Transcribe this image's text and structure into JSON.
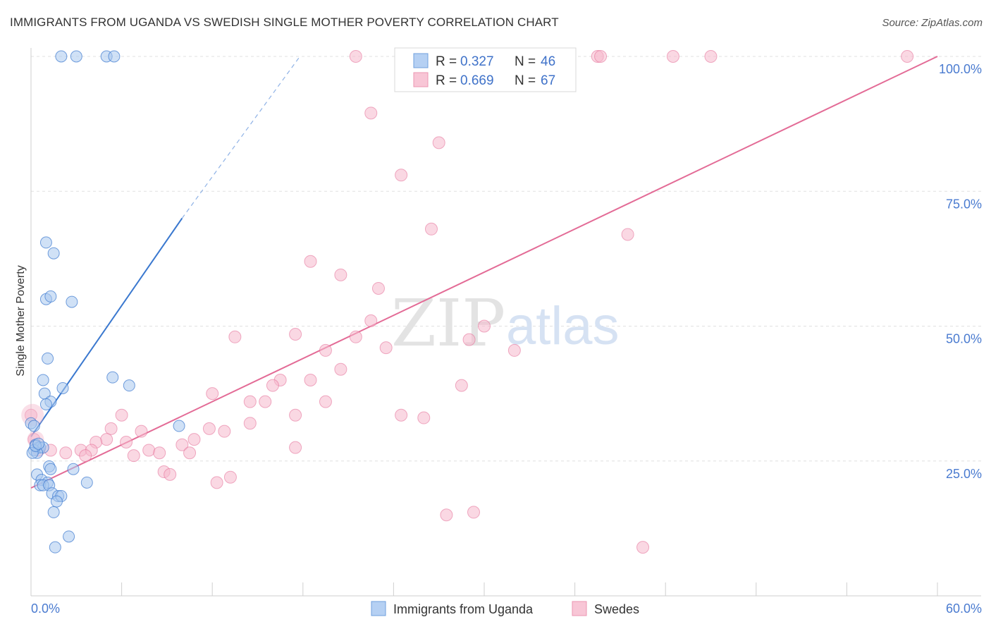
{
  "title": "IMMIGRANTS FROM UGANDA VS SWEDISH SINGLE MOTHER POVERTY CORRELATION CHART",
  "source": "Source: ZipAtlas.com",
  "watermark": {
    "zip": "ZIP",
    "atlas": "atlas"
  },
  "colors": {
    "blue": "#3a78cf",
    "blue_fill": "#a9c8ef",
    "pink": "#e36b96",
    "pink_fill": "#f5b8cc",
    "grid": "#e0e0e0"
  },
  "legend": {
    "rows": [
      {
        "r_label": "R = ",
        "r_value": "0.327",
        "n_label": "N = ",
        "n_value": "46"
      },
      {
        "r_label": "R = ",
        "r_value": "0.669",
        "n_label": "N = ",
        "n_value": "67"
      }
    ]
  },
  "chart_data": {
    "type": "scatter",
    "title": "IMMIGRANTS FROM UGANDA VS SWEDISH SINGLE MOTHER POVERTY CORRELATION CHART",
    "xlabel": "",
    "ylabel": "Single Mother Poverty",
    "xlim": [
      0,
      60
    ],
    "ylim": [
      0,
      100
    ],
    "x_ticks": [
      "0.0%",
      "60.0%"
    ],
    "y_ticks": [
      "25.0%",
      "50.0%",
      "75.0%",
      "100.0%"
    ],
    "grid": true,
    "legend_position": "top-center",
    "series": [
      {
        "name": "Immigrants from Uganda",
        "color": "#3a78cf",
        "R": 0.327,
        "N": 46,
        "trend": {
          "x0": 0,
          "y0": 29.5,
          "x1": 10,
          "y1": 70,
          "dash_to_x": 17.8,
          "dash_to_y": 100
        },
        "points": [
          [
            2,
            100
          ],
          [
            3,
            100
          ],
          [
            5,
            100
          ],
          [
            5.5,
            100
          ],
          [
            1,
            65.5
          ],
          [
            1.5,
            63.5
          ],
          [
            1,
            55
          ],
          [
            1.3,
            55.5
          ],
          [
            2.7,
            54.5
          ],
          [
            1.1,
            44
          ],
          [
            0.8,
            40
          ],
          [
            2.1,
            38.5
          ],
          [
            0.9,
            37.5
          ],
          [
            1.3,
            36
          ],
          [
            1,
            35.5
          ],
          [
            5.4,
            40.5
          ],
          [
            6.5,
            39
          ],
          [
            9.8,
            31.5
          ],
          [
            0,
            32
          ],
          [
            0.2,
            31.5
          ],
          [
            0.3,
            28
          ],
          [
            0.5,
            27.5
          ],
          [
            0.6,
            27.5
          ],
          [
            0.8,
            27.5
          ],
          [
            0.2,
            27
          ],
          [
            0.4,
            26.5
          ],
          [
            0.1,
            26.5
          ],
          [
            1.2,
            24
          ],
          [
            1.3,
            23.5
          ],
          [
            2.8,
            23.5
          ],
          [
            0.4,
            22.5
          ],
          [
            0.7,
            21.5
          ],
          [
            1.1,
            21
          ],
          [
            0.6,
            20.5
          ],
          [
            0.8,
            20.5
          ],
          [
            1.2,
            20.5
          ],
          [
            3.7,
            21
          ],
          [
            1.4,
            19
          ],
          [
            1.8,
            18.5
          ],
          [
            2,
            18.5
          ],
          [
            1.7,
            17.5
          ],
          [
            1.5,
            15.5
          ],
          [
            2.5,
            11
          ],
          [
            1.6,
            9
          ],
          [
            0.3,
            27.8
          ],
          [
            0.5,
            28.2
          ]
        ]
      },
      {
        "name": "Swedes",
        "color": "#e36b96",
        "R": 0.669,
        "N": 67,
        "trend": {
          "x0": 0,
          "y0": 20,
          "x1": 60,
          "y1": 100
        },
        "points": [
          [
            21.5,
            100
          ],
          [
            31,
            100
          ],
          [
            37.5,
            100
          ],
          [
            37.7,
            100
          ],
          [
            42.5,
            100
          ],
          [
            45,
            100
          ],
          [
            58,
            100
          ],
          [
            22.5,
            89.5
          ],
          [
            27,
            84
          ],
          [
            24.5,
            78
          ],
          [
            26.5,
            68
          ],
          [
            39.5,
            67
          ],
          [
            18.5,
            62
          ],
          [
            20.5,
            59.5
          ],
          [
            23,
            57
          ],
          [
            22.5,
            51
          ],
          [
            30,
            50
          ],
          [
            17.5,
            48.5
          ],
          [
            13.5,
            48
          ],
          [
            21.5,
            48
          ],
          [
            29,
            47.5
          ],
          [
            19.5,
            45.5
          ],
          [
            23.5,
            46
          ],
          [
            32,
            45.5
          ],
          [
            20.5,
            42
          ],
          [
            18.5,
            40
          ],
          [
            16.5,
            40
          ],
          [
            16,
            39
          ],
          [
            28.5,
            39
          ],
          [
            12,
            37.5
          ],
          [
            14.5,
            36
          ],
          [
            15.5,
            36
          ],
          [
            19.5,
            36
          ],
          [
            6,
            33.5
          ],
          [
            17.5,
            33.5
          ],
          [
            24.5,
            33.5
          ],
          [
            26,
            33
          ],
          [
            14.5,
            32
          ],
          [
            5.3,
            31
          ],
          [
            7.3,
            30.5
          ],
          [
            11.8,
            31
          ],
          [
            12.8,
            30.5
          ],
          [
            5,
            29
          ],
          [
            6.3,
            28.5
          ],
          [
            10.8,
            29
          ],
          [
            4.3,
            28.5
          ],
          [
            0.2,
            29
          ],
          [
            0.5,
            27
          ],
          [
            1.3,
            27
          ],
          [
            2.3,
            26.5
          ],
          [
            3.3,
            27
          ],
          [
            4,
            27
          ],
          [
            3.6,
            26
          ],
          [
            7.8,
            27
          ],
          [
            8.5,
            26.5
          ],
          [
            10,
            28
          ],
          [
            10.5,
            26.5
          ],
          [
            17.5,
            27.5
          ],
          [
            6.8,
            26
          ],
          [
            8.8,
            23
          ],
          [
            9.2,
            22.5
          ],
          [
            13.2,
            22
          ],
          [
            12.3,
            21
          ],
          [
            27.5,
            15
          ],
          [
            29.3,
            15.5
          ],
          [
            40.5,
            9
          ],
          [
            0,
            33.5
          ]
        ]
      }
    ]
  },
  "bottom_legend": {
    "items": [
      {
        "label": "Immigrants from Uganda"
      },
      {
        "label": "Swedes"
      }
    ]
  }
}
